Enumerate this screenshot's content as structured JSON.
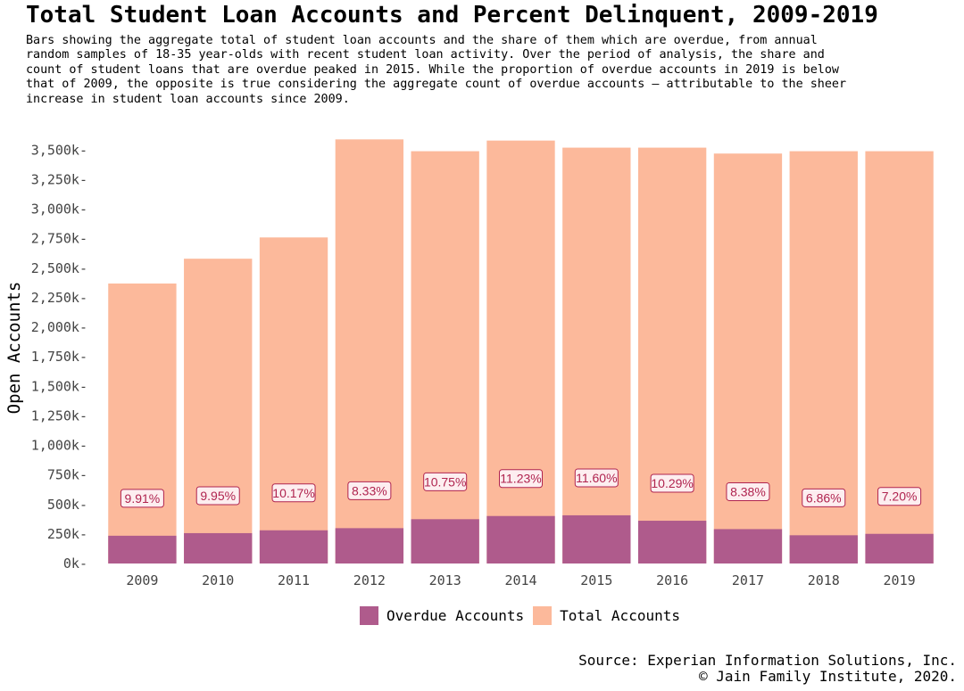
{
  "title": "Total Student Loan Accounts and Percent Delinquent, 2009-2019",
  "subtitle_lines": [
    "Bars showing the aggregate total of student loan accounts and the share of them which are overdue, from annual",
    "random samples of 18-35 year-olds with recent student loan activity. Over the period of analysis, the share and",
    "count of student loans that are overdue peaked in 2015. While the proportion of overdue accounts in 2019 is below",
    "that of 2009, the opposite is true considering the aggregate count of overdue accounts – attributable to the sheer",
    "increase in student loan accounts since 2009."
  ],
  "source_lines": [
    "Source: Experian Information Solutions, Inc.",
    "© Jain Family Institute, 2020."
  ],
  "colors": {
    "overdue": "#af5b8c",
    "total": "#fcb99b",
    "label_text": "#b0244f",
    "label_border": "#b0244f",
    "label_fill": "#fdeef0"
  },
  "chart_data": {
    "type": "bar",
    "stacking": "overlay",
    "xlabel": "",
    "ylabel": "Open Accounts",
    "ylim": [
      0,
      3600
    ],
    "yticks": [
      0,
      250,
      500,
      750,
      1000,
      1250,
      1500,
      1750,
      2000,
      2250,
      2500,
      2750,
      3000,
      3250,
      3500
    ],
    "ytick_labels": [
      "0k-",
      "250k-",
      "500k-",
      "750k-",
      "1,000k-",
      "1,250k-",
      "1,500k-",
      "1,750k-",
      "2,000k-",
      "2,250k-",
      "2,500k-",
      "2,750k-",
      "3,000k-",
      "3,250k-",
      "3,500k-"
    ],
    "grid": false,
    "legend_position": "bottom",
    "categories": [
      "2009",
      "2010",
      "2011",
      "2012",
      "2013",
      "2014",
      "2015",
      "2016",
      "2017",
      "2018",
      "2019"
    ],
    "series": [
      {
        "name": "Total Accounts",
        "values": [
          2370,
          2580,
          2760,
          3590,
          3490,
          3580,
          3520,
          3520,
          3470,
          3490,
          3490
        ]
      },
      {
        "name": "Overdue Accounts",
        "values": [
          235,
          257,
          281,
          299,
          375,
          402,
          408,
          362,
          291,
          239,
          251
        ]
      }
    ],
    "pct_labels": [
      "9.91%",
      "9.95%",
      "10.17%",
      "8.33%",
      "10.75%",
      "11.23%",
      "11.60%",
      "10.29%",
      "8.38%",
      "6.86%",
      "7.20%"
    ],
    "legend": [
      "Overdue Accounts",
      "Total Accounts"
    ]
  }
}
